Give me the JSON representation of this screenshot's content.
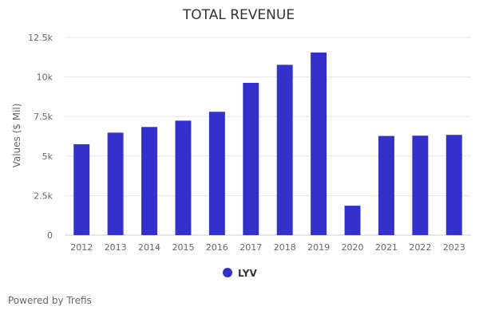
{
  "chart_data": {
    "type": "bar",
    "title": "TOTAL REVENUE",
    "xlabel": "",
    "ylabel": "Values ($ Mil)",
    "categories": [
      "2012",
      "2013",
      "2014",
      "2015",
      "2016",
      "2017",
      "2018",
      "2019",
      "2020",
      "2021",
      "2022",
      "2023"
    ],
    "series": [
      {
        "name": "LYV",
        "color": "#3330cc",
        "values": [
          5750,
          6480,
          6840,
          7240,
          7800,
          9630,
          10770,
          11550,
          1860,
          6270,
          6290,
          6340
        ]
      }
    ],
    "ylim": [
      0,
      12500
    ],
    "yticks": [
      0,
      2500,
      5000,
      7500,
      10000,
      12500
    ],
    "ytick_labels": [
      "0",
      "2.5k",
      "5k",
      "7.5k",
      "10k",
      "12.5k"
    ],
    "grid": true,
    "legend": "bottom-center"
  },
  "footer": {
    "credit": "Powered by Trefis"
  }
}
